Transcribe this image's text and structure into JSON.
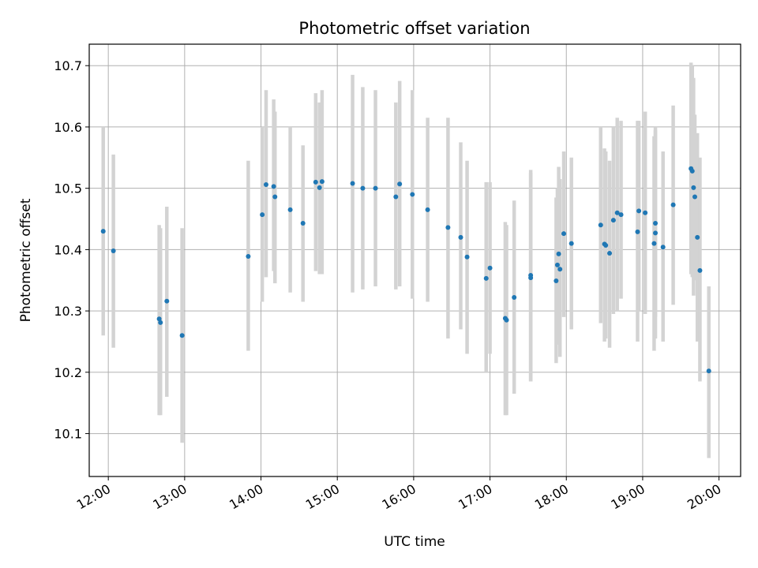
{
  "chart_data": {
    "type": "scatter",
    "title": "Photometric offset variation",
    "xlabel": "UTC time",
    "ylabel": "Photometric offset",
    "x_ticks": [
      "12:00",
      "13:00",
      "14:00",
      "15:00",
      "16:00",
      "17:00",
      "18:00",
      "19:00",
      "20:00"
    ],
    "y_ticks": [
      "10.1",
      "10.2",
      "10.3",
      "10.4",
      "10.5",
      "10.6",
      "10.7"
    ],
    "xlim": [
      "11:45",
      "20:17"
    ],
    "ylim": [
      10.03,
      10.735
    ],
    "grid": true,
    "colors": {
      "point": "#1f77b4",
      "errorbar": "#d3d3d3",
      "grid": "#b0b0b0"
    },
    "series": [
      {
        "x": [
          "11:56",
          "12:04",
          "12:40",
          "12:41",
          "12:46",
          "12:58",
          "13:50",
          "14:01",
          "14:04",
          "14:10",
          "14:11",
          "14:23",
          "14:33",
          "14:43",
          "14:46",
          "14:48",
          "15:12",
          "15:20",
          "15:30",
          "15:46",
          "15:49",
          "15:59",
          "16:11",
          "16:27",
          "16:37",
          "16:42",
          "16:57",
          "17:00",
          "17:12",
          "17:13",
          "17:19",
          "17:32",
          "17:32",
          "17:52",
          "17:53",
          "17:54",
          "17:55",
          "17:58",
          "18:04",
          "18:27",
          "18:30",
          "18:31",
          "18:34",
          "18:37",
          "18:40",
          "18:43",
          "18:56",
          "18:57",
          "19:02",
          "19:09",
          "19:10",
          "19:10",
          "19:16",
          "19:24",
          "19:38",
          "19:39",
          "19:40",
          "19:41",
          "19:43",
          "19:45",
          "19:52"
        ],
        "y": [
          10.43,
          10.398,
          10.287,
          10.281,
          10.316,
          10.26,
          10.389,
          10.457,
          10.506,
          10.503,
          10.486,
          10.465,
          10.443,
          10.51,
          10.501,
          10.511,
          10.508,
          10.5,
          10.5,
          10.486,
          10.507,
          10.49,
          10.465,
          10.436,
          10.42,
          10.388,
          10.353,
          10.37,
          10.288,
          10.285,
          10.322,
          10.354,
          10.358,
          10.349,
          10.375,
          10.393,
          10.368,
          10.426,
          10.41,
          10.44,
          10.409,
          10.407,
          10.394,
          10.448,
          10.46,
          10.457,
          10.429,
          10.463,
          10.46,
          10.41,
          10.427,
          10.443,
          10.404,
          10.473,
          10.532,
          10.528,
          10.501,
          10.486,
          10.42,
          10.366,
          10.202
        ],
        "yerr_low": [
          10.26,
          10.24,
          10.13,
          10.13,
          10.16,
          10.085,
          10.235,
          10.315,
          10.355,
          10.365,
          10.345,
          10.33,
          10.315,
          10.365,
          10.36,
          10.36,
          10.33,
          10.335,
          10.34,
          10.335,
          10.34,
          10.32,
          10.315,
          10.255,
          10.27,
          10.23,
          10.2,
          10.23,
          10.13,
          10.13,
          10.165,
          10.185,
          10.185,
          10.215,
          10.245,
          10.25,
          10.225,
          10.29,
          10.27,
          10.28,
          10.25,
          10.255,
          10.24,
          10.295,
          10.3,
          10.32,
          10.25,
          10.3,
          10.295,
          10.235,
          10.255,
          10.29,
          10.25,
          10.31,
          10.36,
          10.355,
          10.325,
          10.35,
          10.25,
          10.185,
          10.06
        ],
        "yerr_high": [
          10.6,
          10.555,
          10.44,
          10.435,
          10.47,
          10.435,
          10.545,
          10.6,
          10.66,
          10.645,
          10.625,
          10.6,
          10.57,
          10.655,
          10.64,
          10.66,
          10.685,
          10.665,
          10.66,
          10.64,
          10.675,
          10.66,
          10.615,
          10.615,
          10.575,
          10.545,
          10.51,
          10.51,
          10.445,
          10.44,
          10.48,
          10.53,
          10.525,
          10.485,
          10.5,
          10.535,
          10.515,
          10.56,
          10.55,
          10.6,
          10.565,
          10.56,
          10.545,
          10.6,
          10.615,
          10.61,
          10.61,
          10.61,
          10.625,
          10.585,
          10.6,
          10.595,
          10.56,
          10.635,
          10.705,
          10.7,
          10.68,
          10.62,
          10.59,
          10.55,
          10.34
        ]
      }
    ]
  }
}
